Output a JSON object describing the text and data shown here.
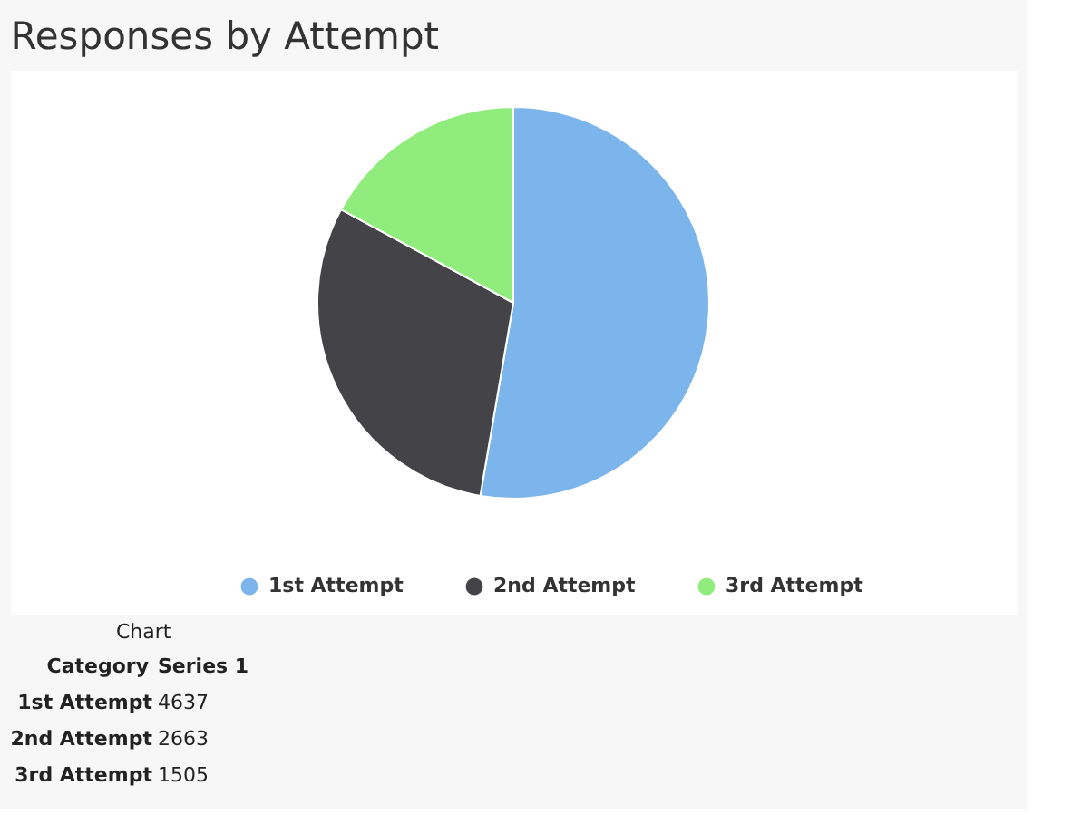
{
  "chart_data": [
    {
      "type": "pie",
      "title": "Responses by Attempt",
      "categories": [
        "1st Attempt",
        "2nd Attempt",
        "3rd Attempt"
      ],
      "values": [
        52.7,
        30.2,
        17.1
      ],
      "colors": [
        "#7cb5ec",
        "#434348",
        "#90ed7d"
      ],
      "legend": "bottom"
    },
    {
      "type": "other",
      "title": "Chart",
      "categories": [
        "1st Attempt",
        "2nd Attempt",
        "3rd Attempt"
      ],
      "values": [
        4637,
        2663,
        1505
      ],
      "annotations": [
        "Category",
        "Series 1"
      ],
      "data_labels": true
    }
  ]
}
